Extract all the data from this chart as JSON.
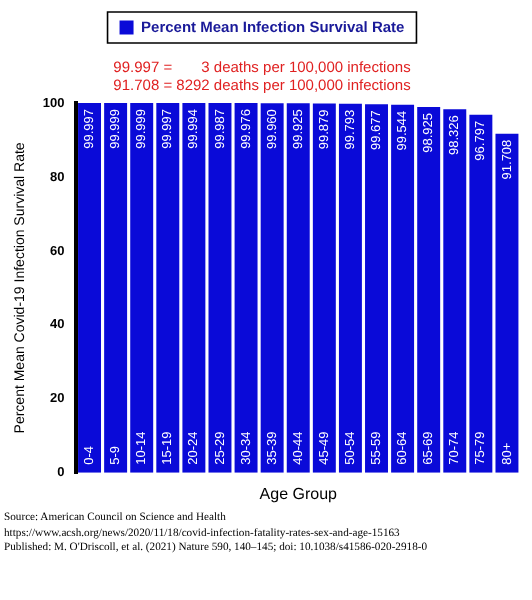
{
  "chart_data": {
    "type": "bar",
    "xlabel": "Age Group",
    "ylabel": "Percent Mean Covid-19 Infection Survival Rate",
    "categories": [
      "0-4",
      "5-9",
      "10-14",
      "15-19",
      "20-24",
      "25-29",
      "30-34",
      "35-39",
      "40-44",
      "45-49",
      "50-54",
      "55-59",
      "60-64",
      "65-69",
      "70-74",
      "75-79",
      "80+"
    ],
    "series": [
      {
        "name": "Percent Mean Infection Survival Rate",
        "color": "#0a0ad8",
        "values": [
          99.997,
          99.999,
          99.999,
          99.997,
          99.994,
          99.987,
          99.976,
          99.96,
          99.925,
          99.879,
          99.793,
          99.677,
          99.544,
          98.925,
          98.326,
          96.797,
          91.708
        ]
      }
    ],
    "value_labels": [
      "99.997",
      "99.999",
      "99.999",
      "99.997",
      "99.994",
      "99.987",
      "99.976",
      "99.960",
      "99.925",
      "99.879",
      "99.793",
      "99.677",
      "99.544",
      "98.925",
      "98.326",
      "96.797",
      "91.708"
    ],
    "ylim": [
      0,
      100
    ],
    "yticks": [
      0,
      20,
      40,
      60,
      80,
      100
    ],
    "grid": false,
    "legend": "top",
    "annotations": [
      "99.997 =       3 deaths per 100,000 infections",
      "91.708 = 8292 deaths per 100,000 infections",
      "Source: American Council on Science and Health",
      "https://www.acsh.org/news/2020/11/18/covid-infection-fatality-rates-sex-and-age-15163",
      "Published: M. O'Driscoll, et al. (2021) Nature 590, 140–145; doi: 10.1038/s41586-020-2918-0"
    ]
  }
}
